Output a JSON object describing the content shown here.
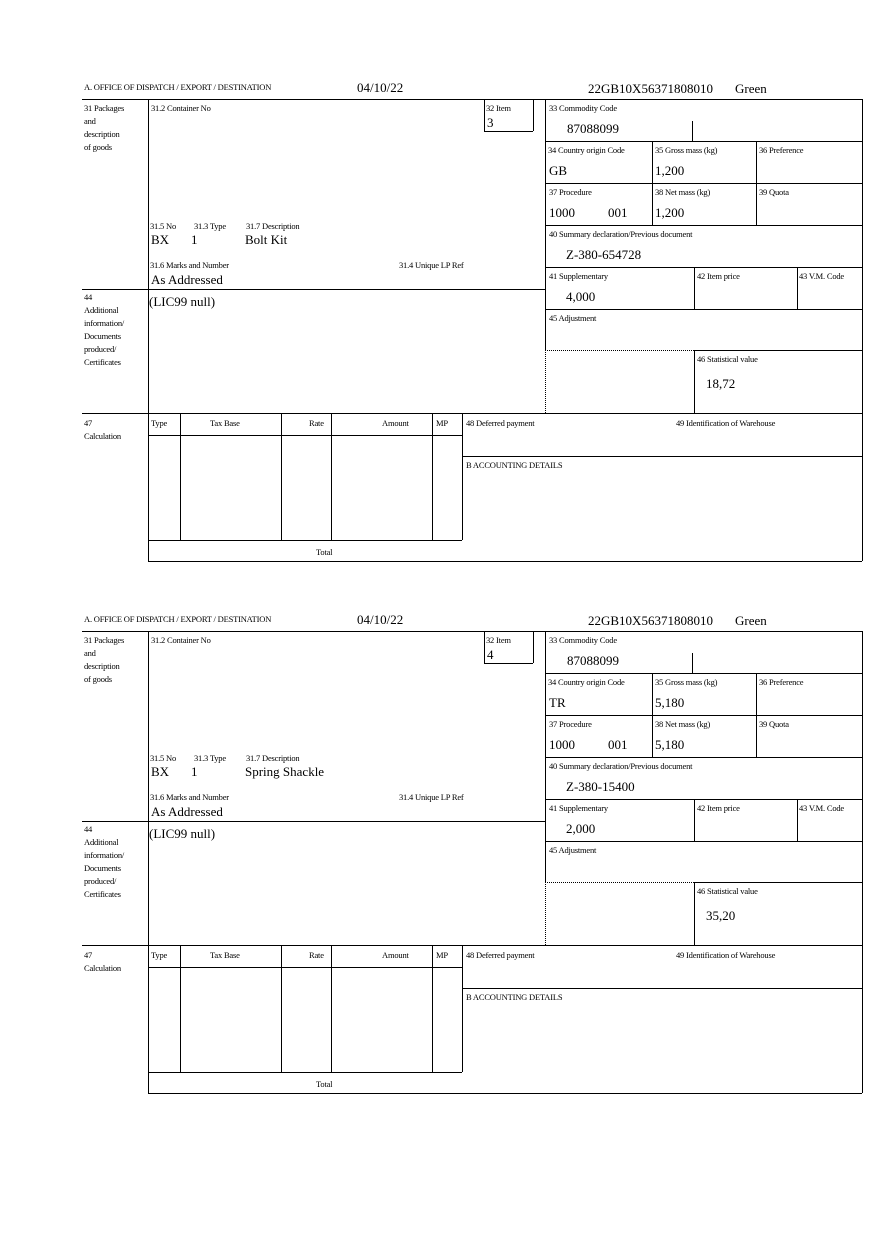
{
  "labels": {
    "office": "A.  OFFICE OF DISPATCH / EXPORT / DESTINATION",
    "packages": [
      "31 Packages",
      "and",
      "description",
      "of goods"
    ],
    "container_no": "31.2 Container No",
    "item": "32 Item",
    "no": "31.5 No",
    "type": "31.3 Type",
    "description": "31.7 Description",
    "marks": "31.6 Marks and Number",
    "unique_ref": "31.4 Unique LP Ref",
    "commodity_code": "33 Commodity Code",
    "country_origin": "34 Country origin Code",
    "gross_mass": "35 Gross mass (kg)",
    "preference": "36 Preference",
    "procedure": "37 Procedure",
    "net_mass": "38 Net mass (kg)",
    "quota": "39 Quota",
    "summary_decl": "40 Summary declaration/Previous document",
    "supplementary": "41 Supplementary",
    "item_price": "42 Item price",
    "vm_code": "43 V.M. Code",
    "additional": [
      "44",
      "Additional",
      "information/",
      "Documents",
      "produced/",
      "Certificates"
    ],
    "adjustment": "45 Adjustment",
    "stat_value": "46 Statistical value",
    "calculation": [
      "47",
      "Calculation"
    ],
    "calc_cols": [
      "Type",
      "Tax Base",
      "Rate",
      "Amount",
      "MP"
    ],
    "total": "Total",
    "deferred": "48 Deferred payment",
    "warehouse": "49 Identification of Warehouse",
    "accounting": "B ACCOUNTING DETAILS"
  },
  "items": [
    {
      "date": "04/10/22",
      "reference": "22GB10X56371808010",
      "route": "Green",
      "item_no": "3",
      "pkg_no": "BX",
      "pkg_type": "1",
      "description": "Bolt Kit",
      "marks": "As Addressed",
      "commodity_code": "87088099",
      "country_origin": "GB",
      "gross_mass": "1,200",
      "procedure": "1000",
      "procedure_suffix": "001",
      "net_mass": "1,200",
      "summary_decl": "Z-380-654728",
      "supplementary": "4,000",
      "additional_info": "(LIC99 null)",
      "stat_value": "18,72"
    },
    {
      "date": "04/10/22",
      "reference": "22GB10X56371808010",
      "route": "Green",
      "item_no": "4",
      "pkg_no": "BX",
      "pkg_type": "1",
      "description": "Spring Shackle",
      "marks": "As Addressed",
      "commodity_code": "87088099",
      "country_origin": "TR",
      "gross_mass": "5,180",
      "procedure": "1000",
      "procedure_suffix": "001",
      "net_mass": "5,180",
      "summary_decl": "Z-380-15400",
      "supplementary": "2,000",
      "additional_info": "(LIC99 null)",
      "stat_value": "35,20"
    }
  ]
}
